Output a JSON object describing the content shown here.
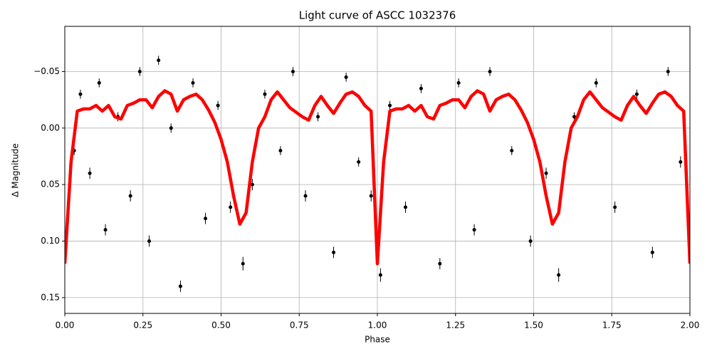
{
  "chart_data": {
    "type": "line",
    "title": "Light curve of ASCC 1032376",
    "xlabel": "Phase",
    "ylabel": "Δ Magnitude",
    "xlim": [
      0,
      2
    ],
    "ylim": [
      -0.09,
      0.164
    ],
    "y_inverted": true,
    "grid": true,
    "xticks": [
      {
        "value": 0,
        "label": "0.00"
      },
      {
        "value": 0.25,
        "label": "0.25"
      },
      {
        "value": 0.5,
        "label": "0.50"
      },
      {
        "value": 0.75,
        "label": "0.75"
      },
      {
        "value": 1,
        "label": "1.00"
      },
      {
        "value": 1.25,
        "label": "1.25"
      },
      {
        "value": 1.5,
        "label": "1.50"
      },
      {
        "value": 1.75,
        "label": "1.75"
      },
      {
        "value": 2,
        "label": "2.00"
      }
    ],
    "yticks": [
      {
        "value": -0.05,
        "label": "−0.05"
      },
      {
        "value": 0,
        "label": "0.00"
      },
      0.05,
      {
        "value": 0.1,
        "label": "0.10"
      },
      0.15
    ],
    "series": [
      {
        "type": "scatter",
        "color": "#000000",
        "x": [
          0.03,
          0.05,
          0.08,
          0.11,
          0.13,
          0.17,
          0.21,
          0.24,
          0.27,
          0.3,
          0.34,
          0.37,
          0.41,
          0.45,
          0.49,
          0.53,
          0.57,
          0.6,
          0.64,
          0.69,
          0.73,
          0.77,
          0.81,
          0.86,
          0.9,
          0.94,
          0.98,
          1.01,
          1.04,
          1.09,
          1.14,
          1.2,
          1.26,
          1.31,
          1.36,
          1.43,
          1.49,
          1.54,
          1.58,
          1.63,
          1.7,
          1.76,
          1.83,
          1.88,
          1.93,
          1.97
        ],
        "values": [
          0.02,
          -0.03,
          0.04,
          -0.04,
          0.09,
          -0.01,
          0.06,
          -0.05,
          0.1,
          -0.06,
          0.0,
          0.14,
          -0.04,
          0.08,
          -0.02,
          0.07,
          0.12,
          0.05,
          -0.03,
          0.02,
          -0.05,
          0.06,
          -0.01,
          0.11,
          -0.045,
          0.03,
          0.06,
          0.13,
          -0.02,
          0.07,
          -0.035,
          0.12,
          -0.04,
          0.09,
          -0.05,
          0.02,
          0.1,
          0.04,
          0.13,
          -0.01,
          -0.04,
          0.07,
          -0.03,
          0.11,
          -0.05,
          0.03
        ],
        "errors": [
          0.004,
          0.004,
          0.005,
          0.004,
          0.005,
          0.004,
          0.005,
          0.004,
          0.005,
          0.004,
          0.004,
          0.005,
          0.004,
          0.005,
          0.004,
          0.005,
          0.006,
          0.005,
          0.004,
          0.004,
          0.004,
          0.005,
          0.004,
          0.005,
          0.004,
          0.004,
          0.005,
          0.006,
          0.004,
          0.005,
          0.004,
          0.005,
          0.004,
          0.005,
          0.004,
          0.004,
          0.005,
          0.005,
          0.006,
          0.004,
          0.004,
          0.005,
          0.004,
          0.005,
          0.004,
          0.005
        ]
      },
      {
        "type": "line",
        "color": "#ff0000",
        "x": [
          0,
          0.02,
          0.04,
          0.06,
          0.08,
          0.1,
          0.12,
          0.14,
          0.16,
          0.18,
          0.2,
          0.22,
          0.24,
          0.26,
          0.28,
          0.3,
          0.32,
          0.34,
          0.36,
          0.38,
          0.4,
          0.42,
          0.44,
          0.46,
          0.48,
          0.5,
          0.52,
          0.54,
          0.56,
          0.58,
          0.6,
          0.62,
          0.64,
          0.66,
          0.68,
          0.7,
          0.72,
          0.74,
          0.76,
          0.78,
          0.8,
          0.82,
          0.84,
          0.86,
          0.88,
          0.9,
          0.92,
          0.94,
          0.96,
          0.98,
          1,
          1.02,
          1.04,
          1.06,
          1.08,
          1.1,
          1.12,
          1.14,
          1.16,
          1.18,
          1.2,
          1.22,
          1.24,
          1.26,
          1.28,
          1.3,
          1.32,
          1.34,
          1.36,
          1.38,
          1.4,
          1.42,
          1.44,
          1.46,
          1.48,
          1.5,
          1.52,
          1.54,
          1.56,
          1.58,
          1.6,
          1.62,
          1.64,
          1.66,
          1.68,
          1.7,
          1.72,
          1.74,
          1.76,
          1.78,
          1.8,
          1.82,
          1.84,
          1.86,
          1.88,
          1.9,
          1.92,
          1.94,
          1.96,
          1.98,
          2
        ],
        "values": [
          0.12,
          0.03,
          -0.015,
          -0.017,
          -0.017,
          -0.02,
          -0.015,
          -0.02,
          -0.01,
          -0.008,
          -0.02,
          -0.022,
          -0.025,
          -0.025,
          -0.018,
          -0.028,
          -0.033,
          -0.03,
          -0.015,
          -0.025,
          -0.028,
          -0.03,
          -0.025,
          -0.016,
          -0.005,
          0.01,
          0.03,
          0.06,
          0.085,
          0.075,
          0.03,
          0.0,
          -0.01,
          -0.025,
          -0.032,
          -0.025,
          -0.018,
          -0.014,
          -0.01,
          -0.007,
          -0.02,
          -0.028,
          -0.02,
          -0.013,
          -0.022,
          -0.03,
          -0.032,
          -0.028,
          -0.02,
          -0.015,
          0.12,
          0.03,
          -0.015,
          -0.017,
          -0.017,
          -0.02,
          -0.015,
          -0.02,
          -0.01,
          -0.008,
          -0.02,
          -0.022,
          -0.025,
          -0.025,
          -0.018,
          -0.028,
          -0.033,
          -0.03,
          -0.015,
          -0.025,
          -0.028,
          -0.03,
          -0.025,
          -0.016,
          -0.005,
          0.01,
          0.03,
          0.06,
          0.085,
          0.075,
          0.03,
          0.0,
          -0.01,
          -0.025,
          -0.032,
          -0.025,
          -0.018,
          -0.014,
          -0.01,
          -0.007,
          -0.02,
          -0.028,
          -0.02,
          -0.013,
          -0.022,
          -0.03,
          -0.032,
          -0.028,
          -0.02,
          -0.015,
          0.12
        ]
      }
    ]
  }
}
